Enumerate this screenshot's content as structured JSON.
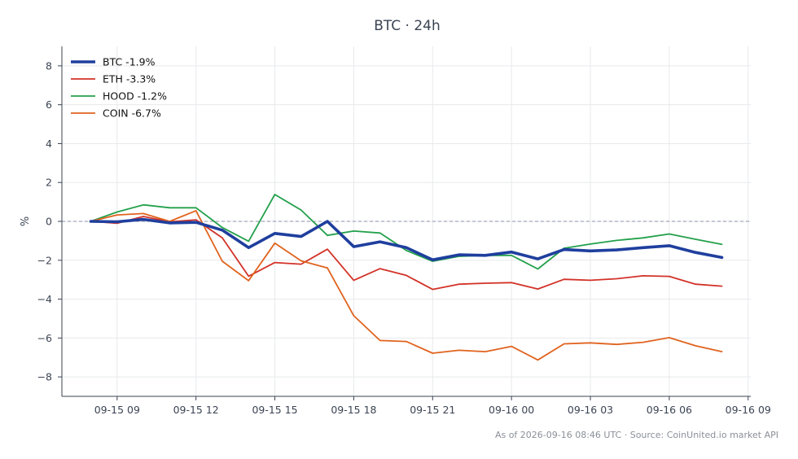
{
  "chart_data": {
    "type": "line",
    "title": "BTC · 24h",
    "xlabel": "",
    "ylabel": "%",
    "xlim": [
      -1.1,
      25.1
    ],
    "ylim": [
      -9,
      9
    ],
    "x_ticks": [
      {
        "pos": 1,
        "label": "09-15 09"
      },
      {
        "pos": 4,
        "label": "09-15 12"
      },
      {
        "pos": 7,
        "label": "09-15 15"
      },
      {
        "pos": 10,
        "label": "09-15 18"
      },
      {
        "pos": 13,
        "label": "09-15 21"
      },
      {
        "pos": 16,
        "label": "09-16 00"
      },
      {
        "pos": 19,
        "label": "09-16 03"
      },
      {
        "pos": 22,
        "label": "09-16 06"
      },
      {
        "pos": 25,
        "label": "09-16 09"
      }
    ],
    "y_ticks": [
      {
        "value": 8,
        "label": "8"
      },
      {
        "value": 6,
        "label": "6"
      },
      {
        "value": 4,
        "label": "4"
      },
      {
        "value": 2,
        "label": "2"
      },
      {
        "value": 0,
        "label": "0"
      },
      {
        "value": -2,
        "label": "−2"
      },
      {
        "value": -4,
        "label": "−4"
      },
      {
        "value": -6,
        "label": "−6"
      },
      {
        "value": -8,
        "label": "−8"
      }
    ],
    "reference_line": {
      "y": 0,
      "style": "dashed"
    },
    "grid": true,
    "legend_position": "top-left",
    "x": [
      0,
      1,
      2,
      3,
      4,
      5,
      6,
      7,
      8,
      9,
      10,
      11,
      12,
      13,
      14,
      15,
      16,
      17,
      18,
      19,
      20,
      21,
      22,
      23,
      24
    ],
    "series": [
      {
        "name": "BTC -1.9%",
        "color": "#1f3f9e",
        "emphasis": true,
        "values": [
          0,
          -0.02,
          0.1,
          -0.08,
          -0.05,
          -0.45,
          -1.35,
          -0.62,
          -0.78,
          0,
          -1.3,
          -1.05,
          -1.35,
          -1.98,
          -1.72,
          -1.75,
          -1.58,
          -1.93,
          -1.45,
          -1.52,
          -1.47,
          -1.35,
          -1.25,
          -1.6,
          -1.86
        ]
      },
      {
        "name": "ETH -3.3%",
        "color": "#d23228",
        "values": [
          0,
          -0.1,
          0.25,
          -0.02,
          0.08,
          -0.85,
          -2.82,
          -2.12,
          -2.2,
          -1.43,
          -3.03,
          -2.43,
          -2.78,
          -3.5,
          -3.23,
          -3.18,
          -3.15,
          -3.48,
          -2.98,
          -3.03,
          -2.95,
          -2.8,
          -2.83,
          -3.23,
          -3.33
        ]
      },
      {
        "name": "HOOD -1.2%",
        "color": "#23a04b",
        "values": [
          0,
          0.48,
          0.85,
          0.7,
          0.7,
          -0.32,
          -1.02,
          1.38,
          0.58,
          -0.72,
          -0.5,
          -0.6,
          -1.5,
          -2.05,
          -1.8,
          -1.75,
          -1.75,
          -2.45,
          -1.38,
          -1.17,
          -0.98,
          -0.85,
          -0.65,
          -0.92,
          -1.18
        ]
      },
      {
        "name": "COIN -6.7%",
        "color": "#e0631e",
        "values": [
          0,
          0.33,
          0.4,
          0,
          0.55,
          -2.05,
          -3.05,
          -1.12,
          -2.03,
          -2.4,
          -4.85,
          -6.13,
          -6.18,
          -6.78,
          -6.63,
          -6.7,
          -6.43,
          -7.13,
          -6.3,
          -6.25,
          -6.33,
          -6.22,
          -5.98,
          -6.4,
          -6.7
        ]
      }
    ]
  },
  "footer": {
    "source_text": "As of 2026-09-16 08:46 UTC · Source: CoinUnited.io market API"
  }
}
